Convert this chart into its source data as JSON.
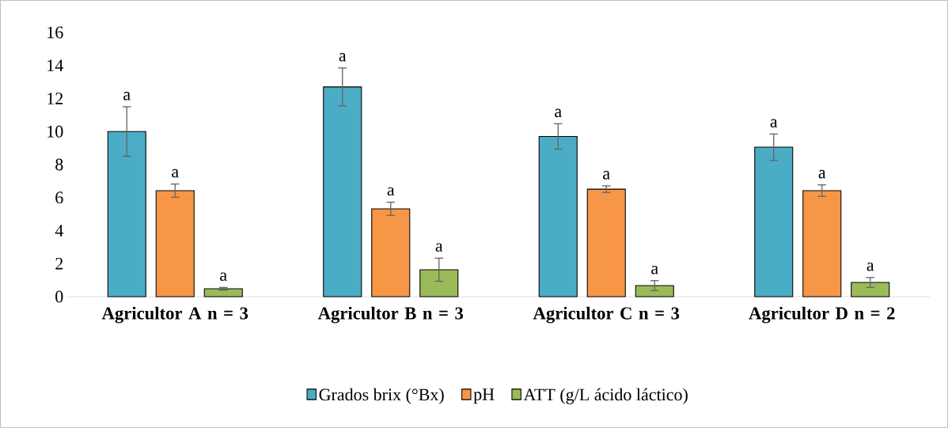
{
  "chart_data": {
    "type": "bar",
    "categories": [
      "Agricultor A n = 3",
      "Agricultor B n = 3",
      "Agricultor C n = 3",
      "Agricultor D n = 2"
    ],
    "series": [
      {
        "name": "Grados brix (°Bx)",
        "color": "#4bacc6",
        "values": [
          10.0,
          12.7,
          9.7,
          9.05
        ],
        "errors": [
          1.5,
          1.15,
          0.77,
          0.8
        ],
        "value_labels": [
          "a",
          "a",
          "a",
          "a"
        ]
      },
      {
        "name": "pH",
        "color": "#f79646",
        "values": [
          6.42,
          5.32,
          6.51,
          6.42
        ],
        "errors": [
          0.4,
          0.4,
          0.2,
          0.35
        ],
        "value_labels": [
          "a",
          "a",
          "a",
          "a"
        ]
      },
      {
        "name": "ATT (g/L ácido láctico)",
        "color": "#9bbb59",
        "values": [
          0.48,
          1.63,
          0.67,
          0.86
        ],
        "errors": [
          0.08,
          0.7,
          0.3,
          0.3
        ],
        "value_labels": [
          "a",
          "a",
          "a",
          "a"
        ]
      }
    ],
    "ylim": [
      0,
      16
    ],
    "yticks": [
      0,
      2,
      4,
      6,
      8,
      10,
      12,
      14,
      16
    ],
    "legend": "bottom"
  }
}
